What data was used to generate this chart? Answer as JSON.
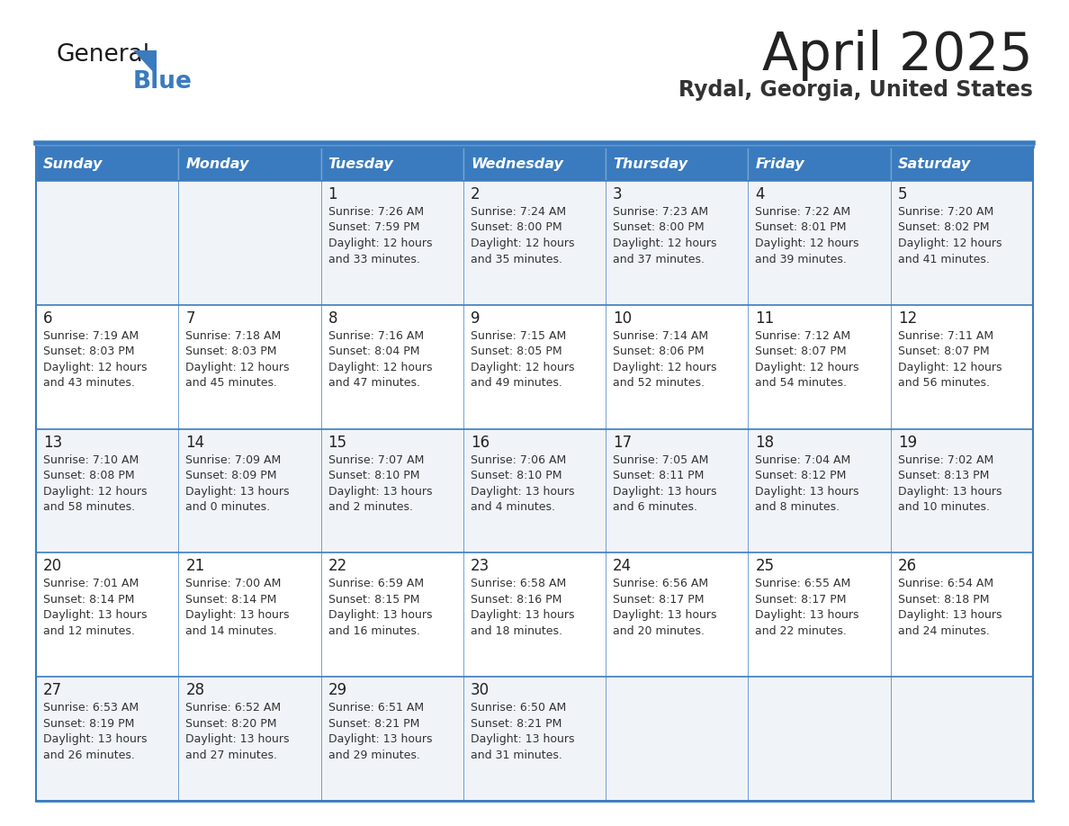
{
  "title": "April 2025",
  "subtitle": "Rydal, Georgia, United States",
  "header_bg": "#3a7bbf",
  "header_text_color": "#ffffff",
  "row_bg_odd": "#f0f4f8",
  "row_bg_even": "#ffffff",
  "border_color": "#3a7bbf",
  "day_headers": [
    "Sunday",
    "Monday",
    "Tuesday",
    "Wednesday",
    "Thursday",
    "Friday",
    "Saturday"
  ],
  "title_color": "#222222",
  "subtitle_color": "#333333",
  "cell_text_color": "#333333",
  "day_number_color": "#222222",
  "calendar": [
    [
      {
        "day": null,
        "sunrise": null,
        "sunset": null,
        "daylight": null
      },
      {
        "day": null,
        "sunrise": null,
        "sunset": null,
        "daylight": null
      },
      {
        "day": 1,
        "sunrise": "7:26 AM",
        "sunset": "7:59 PM",
        "daylight": "12 hours\nand 33 minutes."
      },
      {
        "day": 2,
        "sunrise": "7:24 AM",
        "sunset": "8:00 PM",
        "daylight": "12 hours\nand 35 minutes."
      },
      {
        "day": 3,
        "sunrise": "7:23 AM",
        "sunset": "8:00 PM",
        "daylight": "12 hours\nand 37 minutes."
      },
      {
        "day": 4,
        "sunrise": "7:22 AM",
        "sunset": "8:01 PM",
        "daylight": "12 hours\nand 39 minutes."
      },
      {
        "day": 5,
        "sunrise": "7:20 AM",
        "sunset": "8:02 PM",
        "daylight": "12 hours\nand 41 minutes."
      }
    ],
    [
      {
        "day": 6,
        "sunrise": "7:19 AM",
        "sunset": "8:03 PM",
        "daylight": "12 hours\nand 43 minutes."
      },
      {
        "day": 7,
        "sunrise": "7:18 AM",
        "sunset": "8:03 PM",
        "daylight": "12 hours\nand 45 minutes."
      },
      {
        "day": 8,
        "sunrise": "7:16 AM",
        "sunset": "8:04 PM",
        "daylight": "12 hours\nand 47 minutes."
      },
      {
        "day": 9,
        "sunrise": "7:15 AM",
        "sunset": "8:05 PM",
        "daylight": "12 hours\nand 49 minutes."
      },
      {
        "day": 10,
        "sunrise": "7:14 AM",
        "sunset": "8:06 PM",
        "daylight": "12 hours\nand 52 minutes."
      },
      {
        "day": 11,
        "sunrise": "7:12 AM",
        "sunset": "8:07 PM",
        "daylight": "12 hours\nand 54 minutes."
      },
      {
        "day": 12,
        "sunrise": "7:11 AM",
        "sunset": "8:07 PM",
        "daylight": "12 hours\nand 56 minutes."
      }
    ],
    [
      {
        "day": 13,
        "sunrise": "7:10 AM",
        "sunset": "8:08 PM",
        "daylight": "12 hours\nand 58 minutes."
      },
      {
        "day": 14,
        "sunrise": "7:09 AM",
        "sunset": "8:09 PM",
        "daylight": "13 hours\nand 0 minutes."
      },
      {
        "day": 15,
        "sunrise": "7:07 AM",
        "sunset": "8:10 PM",
        "daylight": "13 hours\nand 2 minutes."
      },
      {
        "day": 16,
        "sunrise": "7:06 AM",
        "sunset": "8:10 PM",
        "daylight": "13 hours\nand 4 minutes."
      },
      {
        "day": 17,
        "sunrise": "7:05 AM",
        "sunset": "8:11 PM",
        "daylight": "13 hours\nand 6 minutes."
      },
      {
        "day": 18,
        "sunrise": "7:04 AM",
        "sunset": "8:12 PM",
        "daylight": "13 hours\nand 8 minutes."
      },
      {
        "day": 19,
        "sunrise": "7:02 AM",
        "sunset": "8:13 PM",
        "daylight": "13 hours\nand 10 minutes."
      }
    ],
    [
      {
        "day": 20,
        "sunrise": "7:01 AM",
        "sunset": "8:14 PM",
        "daylight": "13 hours\nand 12 minutes."
      },
      {
        "day": 21,
        "sunrise": "7:00 AM",
        "sunset": "8:14 PM",
        "daylight": "13 hours\nand 14 minutes."
      },
      {
        "day": 22,
        "sunrise": "6:59 AM",
        "sunset": "8:15 PM",
        "daylight": "13 hours\nand 16 minutes."
      },
      {
        "day": 23,
        "sunrise": "6:58 AM",
        "sunset": "8:16 PM",
        "daylight": "13 hours\nand 18 minutes."
      },
      {
        "day": 24,
        "sunrise": "6:56 AM",
        "sunset": "8:17 PM",
        "daylight": "13 hours\nand 20 minutes."
      },
      {
        "day": 25,
        "sunrise": "6:55 AM",
        "sunset": "8:17 PM",
        "daylight": "13 hours\nand 22 minutes."
      },
      {
        "day": 26,
        "sunrise": "6:54 AM",
        "sunset": "8:18 PM",
        "daylight": "13 hours\nand 24 minutes."
      }
    ],
    [
      {
        "day": 27,
        "sunrise": "6:53 AM",
        "sunset": "8:19 PM",
        "daylight": "13 hours\nand 26 minutes."
      },
      {
        "day": 28,
        "sunrise": "6:52 AM",
        "sunset": "8:20 PM",
        "daylight": "13 hours\nand 27 minutes."
      },
      {
        "day": 29,
        "sunrise": "6:51 AM",
        "sunset": "8:21 PM",
        "daylight": "13 hours\nand 29 minutes."
      },
      {
        "day": 30,
        "sunrise": "6:50 AM",
        "sunset": "8:21 PM",
        "daylight": "13 hours\nand 31 minutes."
      },
      {
        "day": null,
        "sunrise": null,
        "sunset": null,
        "daylight": null
      },
      {
        "day": null,
        "sunrise": null,
        "sunset": null,
        "daylight": null
      },
      {
        "day": null,
        "sunrise": null,
        "sunset": null,
        "daylight": null
      }
    ]
  ],
  "logo_general_color": "#1a1a1a",
  "logo_blue_color": "#3a7bbf",
  "logo_triangle_color": "#3a7bbf"
}
